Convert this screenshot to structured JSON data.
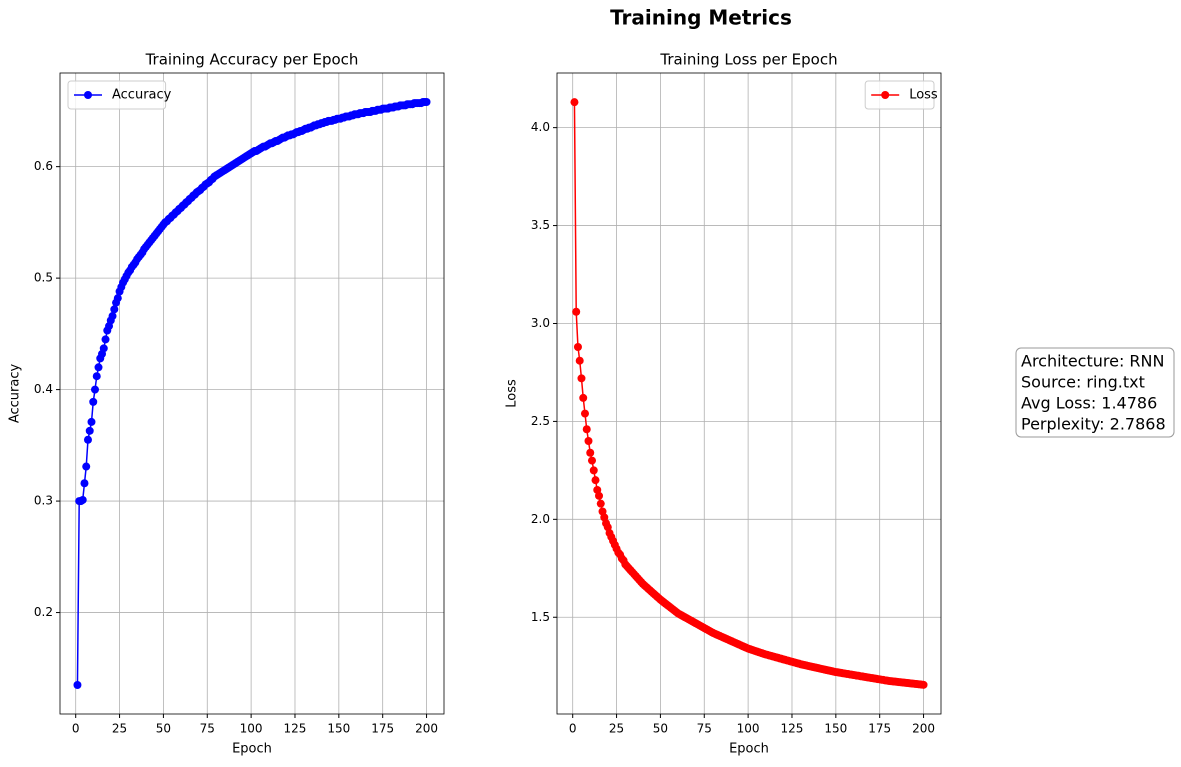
{
  "suptitle": "Training Metrics",
  "annotation": {
    "lines": [
      "Architecture: RNN",
      "Source: ring.txt",
      "Avg Loss: 1.4786",
      "Perplexity: 2.7868"
    ]
  },
  "chart_data": [
    {
      "type": "line",
      "title": "Training Accuracy per Epoch",
      "xlabel": "Epoch",
      "ylabel": "Accuracy",
      "grid": true,
      "legend": "upper left",
      "xlim": [
        -8.95,
        209.95
      ],
      "ylim": [
        0.109,
        0.684
      ],
      "xticks": [
        0,
        25,
        50,
        75,
        100,
        125,
        150,
        175,
        200
      ],
      "yticks": [
        0.2,
        0.3,
        0.4,
        0.5,
        0.6
      ],
      "x": [
        1,
        2,
        3,
        4,
        5,
        6,
        7,
        8,
        9,
        10,
        11,
        12,
        13,
        14,
        15,
        16,
        17,
        18,
        19,
        20,
        21,
        22,
        23,
        24,
        25,
        26,
        27,
        28,
        29,
        30,
        31,
        32,
        33,
        34,
        35,
        36,
        37,
        38,
        39,
        40,
        41,
        42,
        43,
        44,
        45,
        46,
        47,
        48,
        49,
        50,
        51,
        52,
        53,
        54,
        55,
        56,
        57,
        58,
        59,
        60,
        61,
        62,
        63,
        64,
        65,
        66,
        67,
        68,
        69,
        70,
        71,
        72,
        73,
        74,
        75,
        76,
        77,
        78,
        79,
        80,
        81,
        82,
        83,
        84,
        85,
        86,
        87,
        88,
        89,
        90,
        91,
        92,
        93,
        94,
        95,
        96,
        97,
        98,
        99,
        100,
        101,
        102,
        103,
        104,
        105,
        106,
        107,
        108,
        109,
        110,
        111,
        112,
        113,
        114,
        115,
        116,
        117,
        118,
        119,
        120,
        121,
        122,
        123,
        124,
        125,
        126,
        127,
        128,
        129,
        130,
        131,
        132,
        133,
        134,
        135,
        136,
        137,
        138,
        139,
        140,
        141,
        142,
        143,
        144,
        145,
        146,
        147,
        148,
        149,
        150,
        151,
        152,
        153,
        154,
        155,
        156,
        157,
        158,
        159,
        160,
        161,
        162,
        163,
        164,
        165,
        166,
        167,
        168,
        169,
        170,
        171,
        172,
        173,
        174,
        175,
        176,
        177,
        178,
        179,
        180,
        181,
        182,
        183,
        184,
        185,
        186,
        187,
        188,
        189,
        190,
        191,
        192,
        193,
        194,
        195,
        196,
        197,
        198,
        199,
        200
      ],
      "series": [
        {
          "name": "Accuracy",
          "color": "#0000ff",
          "values": [
            0.135,
            0.3,
            0.3,
            0.301,
            0.316,
            0.331,
            0.355,
            0.363,
            0.371,
            0.389,
            0.4,
            0.412,
            0.42,
            0.428,
            0.432,
            0.437,
            0.445,
            0.453,
            0.457,
            0.462,
            0.466,
            0.472,
            0.478,
            0.482,
            0.488,
            0.492,
            0.496,
            0.499,
            0.502,
            0.505,
            0.507,
            0.51,
            0.512,
            0.514,
            0.517,
            0.519,
            0.521,
            0.523,
            0.526,
            0.528,
            0.53,
            0.532,
            0.534,
            0.536,
            0.538,
            0.54,
            0.542,
            0.544,
            0.546,
            0.548,
            0.55,
            0.551,
            0.553,
            0.554,
            0.556,
            0.557,
            0.559,
            0.56,
            0.562,
            0.563,
            0.565,
            0.566,
            0.568,
            0.569,
            0.571,
            0.572,
            0.574,
            0.575,
            0.577,
            0.578,
            0.579,
            0.581,
            0.582,
            0.584,
            0.585,
            0.586,
            0.588,
            0.589,
            0.591,
            0.592,
            0.593,
            0.594,
            0.595,
            0.596,
            0.597,
            0.598,
            0.599,
            0.6,
            0.601,
            0.602,
            0.603,
            0.604,
            0.605,
            0.606,
            0.607,
            0.608,
            0.609,
            0.61,
            0.611,
            0.612,
            0.613,
            0.614,
            0.614,
            0.615,
            0.616,
            0.617,
            0.618,
            0.618,
            0.619,
            0.62,
            0.621,
            0.621,
            0.622,
            0.623,
            0.623,
            0.624,
            0.625,
            0.626,
            0.626,
            0.627,
            0.628,
            0.628,
            0.629,
            0.629,
            0.63,
            0.631,
            0.631,
            0.632,
            0.632,
            0.633,
            0.634,
            0.634,
            0.635,
            0.635,
            0.636,
            0.637,
            0.637,
            0.638,
            0.638,
            0.639,
            0.639,
            0.64,
            0.64,
            0.641,
            0.641,
            0.641,
            0.642,
            0.642,
            0.643,
            0.643,
            0.643,
            0.644,
            0.644,
            0.645,
            0.645,
            0.645,
            0.646,
            0.646,
            0.647,
            0.647,
            0.647,
            0.648,
            0.648,
            0.648,
            0.649,
            0.649,
            0.649,
            0.649,
            0.65,
            0.65,
            0.65,
            0.651,
            0.651,
            0.651,
            0.652,
            0.652,
            0.652,
            0.652,
            0.653,
            0.653,
            0.653,
            0.654,
            0.654,
            0.654,
            0.655,
            0.655,
            0.655,
            0.655,
            0.656,
            0.656,
            0.656,
            0.656,
            0.657,
            0.657,
            0.657,
            0.657,
            0.657,
            0.658,
            0.658,
            0.658
          ]
        }
      ]
    },
    {
      "type": "line",
      "title": "Training Loss per Epoch",
      "xlabel": "Epoch",
      "ylabel": "Loss",
      "grid": true,
      "legend": "upper right",
      "xlim": [
        -8.95,
        209.95
      ],
      "ylim": [
        1.006,
        4.279
      ],
      "xticks": [
        0,
        25,
        50,
        75,
        100,
        125,
        150,
        175,
        200
      ],
      "yticks": [
        1.5,
        {
          "value": 2,
          "label": "2.0"
        },
        2.5,
        {
          "value": 3,
          "label": "3.0"
        },
        3.5,
        {
          "value": 4,
          "label": "4.0"
        }
      ],
      "x": [
        1,
        2,
        3,
        4,
        5,
        6,
        7,
        8,
        9,
        10,
        11,
        12,
        13,
        14,
        15,
        16,
        17,
        18,
        19,
        20,
        21,
        22,
        23,
        24,
        25,
        26,
        27,
        28,
        29,
        30,
        31,
        32,
        33,
        34,
        35,
        36,
        37,
        38,
        39,
        40,
        41,
        42,
        43,
        44,
        45,
        46,
        47,
        48,
        49,
        50,
        51,
        52,
        53,
        54,
        55,
        56,
        57,
        58,
        59,
        60,
        61,
        62,
        63,
        64,
        65,
        66,
        67,
        68,
        69,
        70,
        71,
        72,
        73,
        74,
        75,
        76,
        77,
        78,
        79,
        80,
        81,
        82,
        83,
        84,
        85,
        86,
        87,
        88,
        89,
        90,
        91,
        92,
        93,
        94,
        95,
        96,
        97,
        98,
        99,
        100,
        101,
        102,
        103,
        104,
        105,
        106,
        107,
        108,
        109,
        110,
        111,
        112,
        113,
        114,
        115,
        116,
        117,
        118,
        119,
        120,
        121,
        122,
        123,
        124,
        125,
        126,
        127,
        128,
        129,
        130,
        131,
        132,
        133,
        134,
        135,
        136,
        137,
        138,
        139,
        140,
        141,
        142,
        143,
        144,
        145,
        146,
        147,
        148,
        149,
        150,
        151,
        152,
        153,
        154,
        155,
        156,
        157,
        158,
        159,
        160,
        161,
        162,
        163,
        164,
        165,
        166,
        167,
        168,
        169,
        170,
        171,
        172,
        173,
        174,
        175,
        176,
        177,
        178,
        179,
        180,
        181,
        182,
        183,
        184,
        185,
        186,
        187,
        188,
        189,
        190,
        191,
        192,
        193,
        194,
        195,
        196,
        197,
        198,
        199,
        200
      ],
      "series": [
        {
          "name": "Loss",
          "color": "#ff0000",
          "values": [
            4.13,
            3.06,
            2.88,
            2.81,
            2.72,
            2.62,
            2.54,
            2.46,
            2.4,
            2.34,
            2.3,
            2.25,
            2.2,
            2.15,
            2.12,
            2.08,
            2.04,
            2.01,
            1.98,
            1.96,
            1.93,
            1.91,
            1.89,
            1.87,
            1.85,
            1.83,
            1.82,
            1.8,
            1.79,
            1.77,
            1.76,
            1.75,
            1.74,
            1.73,
            1.72,
            1.71,
            1.7,
            1.69,
            1.68,
            1.67,
            1.662,
            1.654,
            1.646,
            1.638,
            1.63,
            1.622,
            1.614,
            1.606,
            1.598,
            1.59,
            1.583,
            1.576,
            1.569,
            1.562,
            1.555,
            1.548,
            1.541,
            1.534,
            1.527,
            1.52,
            1.515,
            1.51,
            1.505,
            1.5,
            1.495,
            1.49,
            1.485,
            1.48,
            1.475,
            1.47,
            1.465,
            1.46,
            1.455,
            1.45,
            1.445,
            1.44,
            1.435,
            1.43,
            1.425,
            1.42,
            1.416,
            1.412,
            1.408,
            1.404,
            1.4,
            1.396,
            1.392,
            1.388,
            1.384,
            1.38,
            1.376,
            1.372,
            1.368,
            1.364,
            1.36,
            1.356,
            1.352,
            1.348,
            1.344,
            1.34,
            1.337,
            1.334,
            1.331,
            1.328,
            1.325,
            1.322,
            1.319,
            1.316,
            1.313,
            1.31,
            1.308,
            1.305,
            1.303,
            1.3,
            1.298,
            1.295,
            1.293,
            1.29,
            1.288,
            1.285,
            1.283,
            1.28,
            1.278,
            1.275,
            1.273,
            1.27,
            1.268,
            1.265,
            1.263,
            1.26,
            1.258,
            1.256,
            1.254,
            1.252,
            1.25,
            1.248,
            1.246,
            1.244,
            1.242,
            1.24,
            1.238,
            1.236,
            1.234,
            1.232,
            1.23,
            1.228,
            1.226,
            1.224,
            1.222,
            1.22,
            1.219,
            1.217,
            1.216,
            1.214,
            1.213,
            1.211,
            1.21,
            1.208,
            1.207,
            1.205,
            1.204,
            1.202,
            1.201,
            1.199,
            1.198,
            1.196,
            1.195,
            1.193,
            1.192,
            1.19,
            1.189,
            1.187,
            1.186,
            1.184,
            1.183,
            1.181,
            1.18,
            1.178,
            1.177,
            1.175,
            1.174,
            1.173,
            1.172,
            1.171,
            1.17,
            1.169,
            1.168,
            1.167,
            1.166,
            1.165,
            1.164,
            1.163,
            1.162,
            1.161,
            1.16,
            1.159,
            1.158,
            1.157,
            1.156,
            1.155
          ]
        }
      ]
    }
  ]
}
